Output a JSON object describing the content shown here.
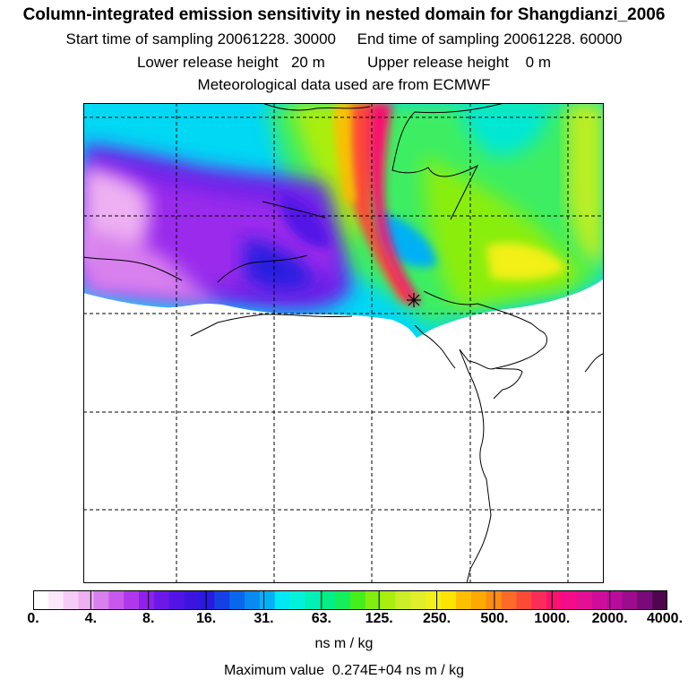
{
  "header": {
    "title": "Column-integrated emission sensitivity in nested domain for Shangdianzi_2006",
    "sampling": "Start time of sampling 20061228. 30000     End time of sampling 20061228. 60000",
    "release": "Lower release height   20 m          Upper release height    0 m",
    "meteo": "Meteorological data used are from ECMWF"
  },
  "colors": {
    "gridline": "#000000",
    "coastline": "#000000",
    "receptor_marker": "#000000"
  },
  "legend": {
    "tick_labels": [
      "0.",
      "4.",
      "8.",
      "16.",
      "31.",
      "63.",
      "125.",
      "250.",
      "500.",
      "1000.",
      "2000.",
      "4000."
    ],
    "color_bins": [
      "#ffffff",
      "#fce8fc",
      "#f6ccf6",
      "#eeb0f2",
      "#d880ee",
      "#c858ec",
      "#b038ec",
      "#9020ec",
      "#6d18e8",
      "#5214e6",
      "#3c14e0",
      "#281ae0",
      "#1440e4",
      "#0a66ec",
      "#0a8af0",
      "#06b0f4",
      "#00e8f4",
      "#00f2da",
      "#00f0b6",
      "#04ee88",
      "#14ee5a",
      "#46ee1e",
      "#82ee10",
      "#aaee10",
      "#ccee28",
      "#e0ee2c",
      "#f2f018",
      "#fce400",
      "#fcc000",
      "#fcaa00",
      "#fc8c14",
      "#fc6a28",
      "#fc4a38",
      "#fc2c5a",
      "#fc1070",
      "#f40c88",
      "#e41094",
      "#d00c9a",
      "#ba0c9c",
      "#9c0c8c",
      "#7a0a7a",
      "#4e064e"
    ],
    "unit": "ns m / kg",
    "max_value": "Maximum value  0.274E+04 ns m / kg"
  },
  "map": {
    "receptor": "Shangdianzi"
  }
}
